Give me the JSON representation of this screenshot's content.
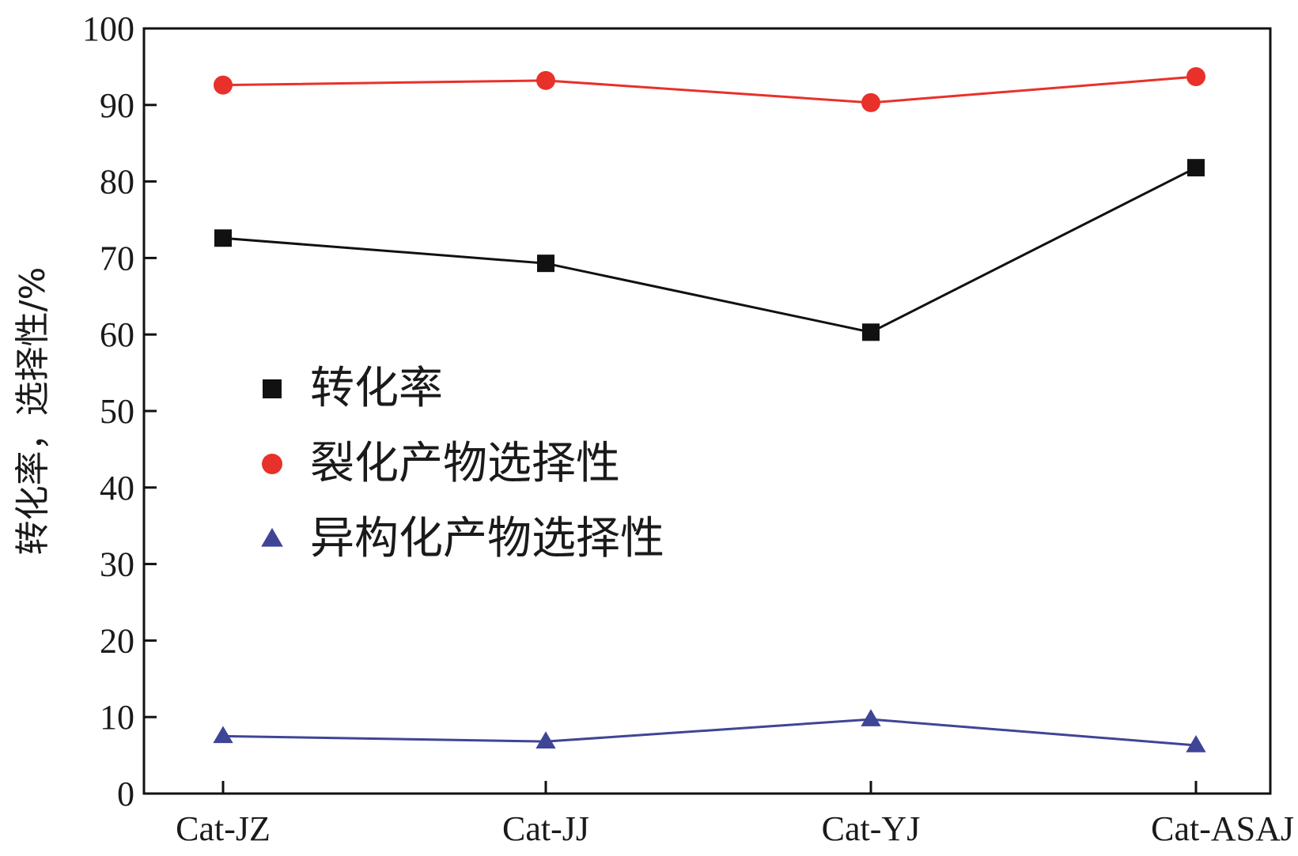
{
  "chart_data": {
    "type": "line",
    "categories": [
      "Cat-JZ",
      "Cat-JJ",
      "Cat-YJ",
      "Cat-ASAJ"
    ],
    "ylabel": "转化率，选择性/%",
    "xlabel": "",
    "ylim": [
      0,
      100
    ],
    "yticks": [
      0,
      10,
      20,
      30,
      40,
      50,
      60,
      70,
      80,
      90,
      100
    ],
    "grid": false,
    "legend_position": "left-center",
    "series": [
      {
        "name": "转化率",
        "marker": "square",
        "color": "#111111",
        "values": [
          72.6,
          69.3,
          60.3,
          81.8
        ]
      },
      {
        "name": "裂化产物选择性",
        "marker": "circle",
        "color": "#e8312a",
        "values": [
          92.6,
          93.2,
          90.3,
          93.7
        ]
      },
      {
        "name": "异构化产物选择性",
        "marker": "triangle",
        "color": "#3f4596",
        "values": [
          7.5,
          6.8,
          9.7,
          6.3
        ]
      }
    ]
  }
}
